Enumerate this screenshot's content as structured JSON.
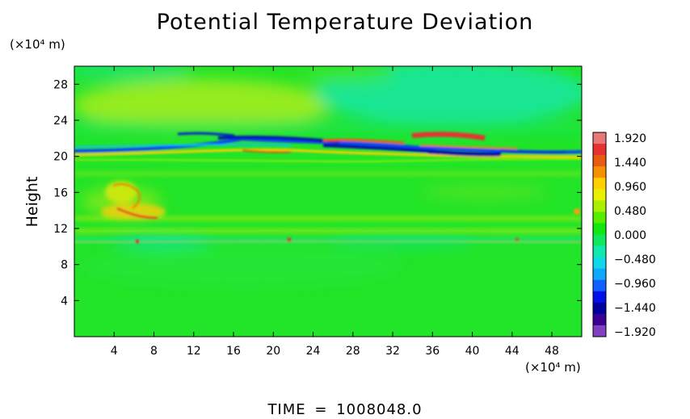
{
  "chart_data": {
    "type": "heatmap",
    "title": "Potential Temperature Deviation",
    "ylabel": "Height",
    "x_unit": "(×10⁴ m)",
    "y_unit": "(×10⁴ m)",
    "x_ticks": [
      4,
      8,
      12,
      16,
      20,
      24,
      28,
      32,
      36,
      40,
      44,
      48
    ],
    "y_ticks": [
      4,
      8,
      12,
      16,
      20,
      24,
      28
    ],
    "xlim": [
      0,
      51
    ],
    "ylim": [
      0,
      30
    ],
    "colorbar": {
      "ticks": [
        "1.920",
        "1.440",
        "0.960",
        "0.480",
        "0.000",
        "−0.480",
        "−0.960",
        "−1.440",
        "−1.920"
      ],
      "range": [
        -1.92,
        1.92
      ],
      "colors": [
        "#e87878",
        "#e83030",
        "#e85a10",
        "#f59000",
        "#ffd000",
        "#e8f000",
        "#aaee00",
        "#55ee00",
        "#10e810",
        "#10e860",
        "#10e8b0",
        "#10d8e8",
        "#10a8ff",
        "#1060ff",
        "#0010e8",
        "#0000a0",
        "#3a0090",
        "#8040c0"
      ]
    },
    "features": [
      {
        "kind": "band",
        "y": 20.2,
        "value": -1.6,
        "note": "negative wave layer"
      },
      {
        "kind": "band",
        "y": 21.4,
        "value": 1.5,
        "note": "positive wave layer"
      },
      {
        "kind": "band",
        "y": 24.8,
        "value": 0.4
      },
      {
        "kind": "band",
        "y": 13.5,
        "value": 0.8
      },
      {
        "kind": "band",
        "y": 10.5,
        "value": 0.6
      }
    ]
  },
  "footer": {
    "time_label": "TIME",
    "equals": "=",
    "time_value": "1008048.0"
  }
}
